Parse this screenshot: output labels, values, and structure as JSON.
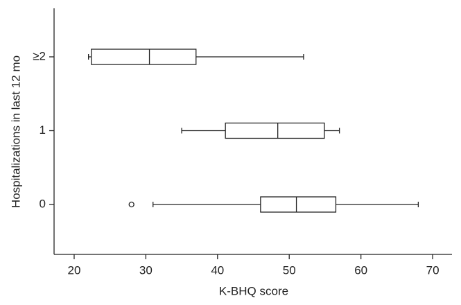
{
  "chart_data": {
    "type": "boxplot",
    "orientation": "horizontal",
    "xlabel": "K-BHQ score",
    "ylabel": "Hospitalizations in last 12 mo",
    "categories": [
      "0",
      "1",
      "≥2"
    ],
    "min": [
      31,
      35,
      22
    ],
    "q1": [
      46,
      41.1,
      22.4
    ],
    "median": [
      51,
      48.4,
      30.5
    ],
    "q3": [
      56.5,
      54.9,
      37
    ],
    "max": [
      68,
      57,
      52
    ],
    "outliers": [
      [
        28
      ],
      [],
      []
    ],
    "color": "#222222",
    "xlim": [
      17.2,
      72.7
    ],
    "xticks": [
      20,
      30,
      40,
      50,
      60,
      70
    ]
  }
}
